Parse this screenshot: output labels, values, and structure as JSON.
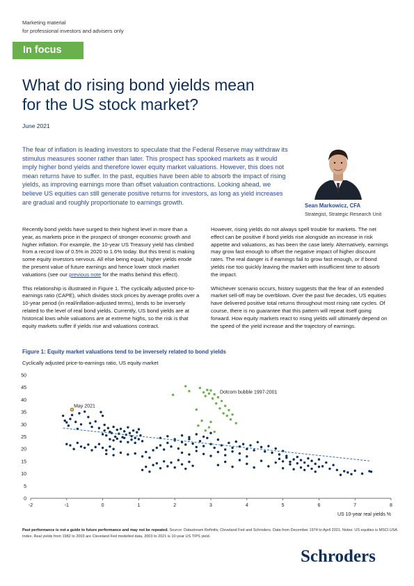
{
  "header": {
    "marketing_line1": "Marketing material",
    "marketing_line2": "for professional investors and advisers only",
    "badge": "In focus",
    "title_line1": "What do rising bond yields mean",
    "title_line2": "for the US stock market?",
    "date": "June 2021"
  },
  "intro": "The fear of inflation is leading investors to speculate that the Federal Reserve may withdraw its stimulus measures sooner rather than later. This prospect has spooked markets as it would imply higher bond yields and therefore lower equity market valuations. However, this does not mean returns have to suffer. In the past, equities have been able to absorb the impact of rising yields, as improving earnings more than offset valuation contractions. Looking ahead, we believe US equities can still generate positive returns for investors, as long as yield increases are gradual and roughly proportionate to earnings growth.",
  "author": {
    "name": "Sean Markowicz, CFA",
    "role": "Strategist, Strategic Research Unit"
  },
  "body": {
    "left_p1": "Recently bond yields have surged to their highest level in more than a year, as markets price in the prospect of stronger economic growth and higher inflation. For example, the 10-year US Treasury yield has climbed from a record low of 0.5% in 2020 to 1.6% today. But this trend is making some equity investors nervous. All else being equal, higher yields erode the present value of future earnings and hence lower stock market valuations (see our",
    "left_link": "previous note",
    "left_p1_end": " for the maths behind this effect).",
    "left_p2": "This relationship is illustrated in Figure 1. The cyclically adjusted price-to-earnings ratio (CAPE), which divides stock prices by average profits over a 10-year period (in real/inflation-adjusted terms), tends to be inversely related to the level of real bond yields. Currently, US bond yields are at historical lows while valuations are at extreme highs, so the risk is that equity markets suffer if yields rise and valuations contract.",
    "right_p1": "However, rising yields do not always spell trouble for markets. The net effect can be positive if bond yields rise alongside an increase in risk appetite and valuations, as has been the case lately. Alternatively, earnings may grow fast enough to offset the negative impact of higher discount rates. The real danger is if earnings fail to grow fast enough, or if bond yields rise too quickly leaving the market with insufficient time to absorb the impact.",
    "right_p2": "Whichever scenario occurs, history suggests that the fear of an extended market sell-off may be overblown. Over the past five decades, US equities have delivered positive total returns throughout most rising rate cycles. Of course, there is no guarantee that this pattern will repeat itself going forward. How equity markets react to rising yields will ultimately depend on the speed of the yield increase and the trajectory of earnings."
  },
  "figure": {
    "title": "Figure 1: Equity market valuations tend to be inversely related to bond yields",
    "subtitle": "Cyclically adjusted price-to-earnings ratio, US equity market"
  },
  "chart_data": {
    "type": "scatter",
    "xlabel": "US 10-year real yields %",
    "ylabel": "",
    "xlim": [
      -2,
      8
    ],
    "ylim": [
      0,
      50
    ],
    "x_ticks": [
      -2,
      -1,
      0,
      1,
      2,
      3,
      4,
      5,
      6,
      7,
      8
    ],
    "y_ticks": [
      0,
      5,
      10,
      15,
      20,
      25,
      30,
      35,
      40,
      45,
      50
    ],
    "grid": false,
    "annotations": [
      {
        "text": "May 2021",
        "x": -0.8,
        "y": 36.8
      },
      {
        "text": "Dotcom bubble 1997-2001",
        "x": 3.25,
        "y": 42.5
      }
    ],
    "trendline": {
      "x": [
        -1.1,
        7.4
      ],
      "y": [
        28.5,
        15.2
      ]
    },
    "colors": {
      "main": "#0c2f5c",
      "dotcom": "#6ab04c",
      "highlight": "#e8b64c",
      "trend": "#2b6cb0"
    },
    "series": [
      {
        "points": [
          [
            -1.1,
            33.5
          ],
          [
            -1.05,
            31.5
          ],
          [
            -1.0,
            30.8
          ],
          [
            -0.95,
            29.5
          ],
          [
            -0.9,
            32.2
          ],
          [
            -0.85,
            33.8
          ],
          [
            -0.75,
            31.0
          ],
          [
            -0.7,
            28.2
          ],
          [
            -0.65,
            34.5
          ],
          [
            -0.6,
            30.0
          ],
          [
            -0.5,
            35.2
          ],
          [
            -0.4,
            33.0
          ],
          [
            -0.35,
            30.5
          ],
          [
            -0.3,
            29.0
          ],
          [
            -0.2,
            31.2
          ],
          [
            -0.1,
            28.5
          ],
          [
            -0.05,
            35.0
          ],
          [
            0.0,
            33.5
          ],
          [
            0.05,
            29.8
          ],
          [
            -1.0,
            22.0
          ],
          [
            -0.9,
            21.5
          ],
          [
            -0.8,
            20.0
          ],
          [
            -0.7,
            22.5
          ],
          [
            -0.6,
            21.0
          ],
          [
            -0.5,
            20.5
          ],
          [
            -0.4,
            21.8
          ],
          [
            -0.3,
            19.5
          ],
          [
            -0.2,
            20.8
          ],
          [
            -0.1,
            22.0
          ],
          [
            0.0,
            20.5
          ],
          [
            0.1,
            19.5
          ],
          [
            0.2,
            21.0
          ],
          [
            0.3,
            20.0
          ],
          [
            0.0,
            26.0
          ],
          [
            0.05,
            27.5
          ],
          [
            0.1,
            25.5
          ],
          [
            0.15,
            28.5
          ],
          [
            0.2,
            27.0
          ],
          [
            0.25,
            26.5
          ],
          [
            0.3,
            29.0
          ],
          [
            0.35,
            25.0
          ],
          [
            0.4,
            27.8
          ],
          [
            0.45,
            26.2
          ],
          [
            0.5,
            28.2
          ],
          [
            0.55,
            24.8
          ],
          [
            0.6,
            27.2
          ],
          [
            0.65,
            25.8
          ],
          [
            0.7,
            28.8
          ],
          [
            0.75,
            26.5
          ],
          [
            0.8,
            25.2
          ],
          [
            0.85,
            27.5
          ],
          [
            0.9,
            24.5
          ],
          [
            0.95,
            26.8
          ],
          [
            1.0,
            28.0
          ],
          [
            1.05,
            25.5
          ],
          [
            0.2,
            24.0
          ],
          [
            0.3,
            23.5
          ],
          [
            0.4,
            24.2
          ],
          [
            0.5,
            23.0
          ],
          [
            0.6,
            24.5
          ],
          [
            0.7,
            22.8
          ],
          [
            0.8,
            23.8
          ],
          [
            0.9,
            22.5
          ],
          [
            1.0,
            24.0
          ],
          [
            1.1,
            23.2
          ],
          [
            0.1,
            18.0
          ],
          [
            0.3,
            17.5
          ],
          [
            0.5,
            18.5
          ],
          [
            0.7,
            17.8
          ],
          [
            0.9,
            18.2
          ],
          [
            1.1,
            17.0
          ],
          [
            1.2,
            18.8
          ],
          [
            1.3,
            16.5
          ],
          [
            1.4,
            19.5
          ],
          [
            1.1,
            11.5
          ],
          [
            1.2,
            12.8
          ],
          [
            1.3,
            10.8
          ],
          [
            1.4,
            13.5
          ],
          [
            1.5,
            14.2
          ],
          [
            1.6,
            12.2
          ],
          [
            1.7,
            15.0
          ],
          [
            1.8,
            13.0
          ],
          [
            1.9,
            14.5
          ],
          [
            2.0,
            12.5
          ],
          [
            2.1,
            15.5
          ],
          [
            2.2,
            13.8
          ],
          [
            2.3,
            12.0
          ],
          [
            2.4,
            14.8
          ],
          [
            2.5,
            13.2
          ],
          [
            1.5,
            20.5
          ],
          [
            1.6,
            21.5
          ],
          [
            1.7,
            19.8
          ],
          [
            1.8,
            22.5
          ],
          [
            1.9,
            21.0
          ],
          [
            2.0,
            23.5
          ],
          [
            2.1,
            20.2
          ],
          [
            2.2,
            22.8
          ],
          [
            2.3,
            21.8
          ],
          [
            2.4,
            24.0
          ],
          [
            2.5,
            22.2
          ],
          [
            2.6,
            20.8
          ],
          [
            2.7,
            23.2
          ],
          [
            2.8,
            21.2
          ],
          [
            2.9,
            24.5
          ],
          [
            3.0,
            22.0
          ],
          [
            3.1,
            20.5
          ],
          [
            3.2,
            23.8
          ],
          [
            3.3,
            21.5
          ],
          [
            3.4,
            19.8
          ],
          [
            1.6,
            24.5
          ],
          [
            1.8,
            25.2
          ],
          [
            2.0,
            24.0
          ],
          [
            2.2,
            25.5
          ],
          [
            2.4,
            24.8
          ],
          [
            2.6,
            26.0
          ],
          [
            2.8,
            25.0
          ],
          [
            3.0,
            26.5
          ],
          [
            2.2,
            18.5
          ],
          [
            2.4,
            17.8
          ],
          [
            2.6,
            19.2
          ],
          [
            2.8,
            18.0
          ],
          [
            3.0,
            17.2
          ],
          [
            3.2,
            18.8
          ],
          [
            3.4,
            17.5
          ],
          [
            3.6,
            19.0
          ],
          [
            3.8,
            18.2
          ],
          [
            4.0,
            17.0
          ],
          [
            3.5,
            22.5
          ],
          [
            3.6,
            20.5
          ],
          [
            3.7,
            23.0
          ],
          [
            3.8,
            21.0
          ],
          [
            3.9,
            22.0
          ],
          [
            4.0,
            20.0
          ],
          [
            4.1,
            21.5
          ],
          [
            4.2,
            19.5
          ],
          [
            4.3,
            22.8
          ],
          [
            4.4,
            20.8
          ],
          [
            4.5,
            19.0
          ],
          [
            4.6,
            21.2
          ],
          [
            4.7,
            18.5
          ],
          [
            4.8,
            20.2
          ],
          [
            4.9,
            17.8
          ],
          [
            5.0,
            19.2
          ],
          [
            5.1,
            17.2
          ],
          [
            3.2,
            13.5
          ],
          [
            3.4,
            14.8
          ],
          [
            3.6,
            12.8
          ],
          [
            3.8,
            15.5
          ],
          [
            4.0,
            14.0
          ],
          [
            4.2,
            12.5
          ],
          [
            4.4,
            15.2
          ],
          [
            4.6,
            13.0
          ],
          [
            4.8,
            14.5
          ],
          [
            5.0,
            12.2
          ],
          [
            5.2,
            13.8
          ],
          [
            5.3,
            11.8
          ],
          [
            5.4,
            14.2
          ],
          [
            5.5,
            12.5
          ],
          [
            5.6,
            11.5
          ],
          [
            5.7,
            13.2
          ],
          [
            5.8,
            12.0
          ],
          [
            5.9,
            10.8
          ],
          [
            6.0,
            12.8
          ],
          [
            4.9,
            16.0
          ],
          [
            5.0,
            15.0
          ],
          [
            5.1,
            16.5
          ],
          [
            5.2,
            14.8
          ],
          [
            5.3,
            15.8
          ],
          [
            5.4,
            16.8
          ],
          [
            5.5,
            15.5
          ],
          [
            5.6,
            14.5
          ],
          [
            5.7,
            16.2
          ],
          [
            5.8,
            15.2
          ],
          [
            5.9,
            14.0
          ],
          [
            6.0,
            15.8
          ],
          [
            6.2,
            14.5
          ],
          [
            6.4,
            13.5
          ],
          [
            6.1,
            13.0
          ],
          [
            6.3,
            12.0
          ],
          [
            6.5,
            11.5
          ],
          [
            6.6,
            9.5
          ],
          [
            6.7,
            11.0
          ],
          [
            6.8,
            10.5
          ],
          [
            6.9,
            9.8
          ],
          [
            7.0,
            11.2
          ],
          [
            7.2,
            10.0
          ],
          [
            7.4,
            11.0
          ],
          [
            7.45,
            10.8
          ]
        ]
      },
      {
        "name": "Dotcom bubble 1997-2001",
        "points": [
          [
            1.95,
            42.0
          ],
          [
            2.3,
            45.5
          ],
          [
            2.4,
            43.5
          ],
          [
            2.7,
            44.8
          ],
          [
            2.8,
            43.0
          ],
          [
            2.85,
            41.5
          ],
          [
            2.9,
            44.0
          ],
          [
            2.95,
            42.5
          ],
          [
            3.0,
            43.8
          ],
          [
            3.05,
            40.5
          ],
          [
            3.1,
            42.2
          ],
          [
            3.15,
            38.5
          ],
          [
            3.2,
            41.0
          ],
          [
            3.25,
            36.5
          ],
          [
            3.3,
            39.5
          ],
          [
            3.35,
            34.5
          ],
          [
            3.4,
            37.5
          ],
          [
            3.45,
            33.5
          ],
          [
            3.5,
            35.8
          ],
          [
            3.55,
            32.0
          ],
          [
            3.6,
            34.0
          ],
          [
            3.7,
            30.5
          ],
          [
            2.6,
            36.0
          ],
          [
            2.75,
            31.5
          ],
          [
            2.65,
            29.5
          ],
          [
            2.85,
            27.5
          ],
          [
            2.95,
            28.8
          ],
          [
            3.0,
            31.0
          ],
          [
            3.1,
            27.0
          ]
        ]
      },
      {
        "name": "May 2021",
        "points": [
          [
            -0.85,
            36.0
          ]
        ]
      }
    ]
  },
  "footnote": {
    "bold": "Past performance is not a guide to future performance and may not be repeated.",
    "text": " Source: Datastream Refinitiv, Cleveland Fed and Schroders. Data from December 1974 to April 2021. Notes: US equities is MSCI USA Index. Real yields from 1982 to 2003 are Cleveland Fed modelled data, 2003 to 2021 is 10-year US TIPS yield."
  },
  "logo": "Schroders"
}
